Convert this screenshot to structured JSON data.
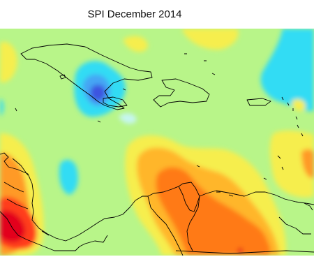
{
  "title": "SPI December 2014",
  "colors": {
    "near_normal": "#b8f589",
    "mild_dry": "#f6ee4e",
    "moderate_dry": "#ffd23f",
    "dry": "#ffb62a",
    "very_dry": "#ff9a26",
    "severe_dry": "#ff7a18",
    "extreme_dry": "#ff3d1a",
    "exceptional_dry": "#e3001c",
    "mild_wet": "#c6f6f1",
    "moderate_wet": "#33dcf4",
    "wet": "#44a6f4",
    "very_wet": "#3e55e0",
    "coastline": "#000000"
  }
}
